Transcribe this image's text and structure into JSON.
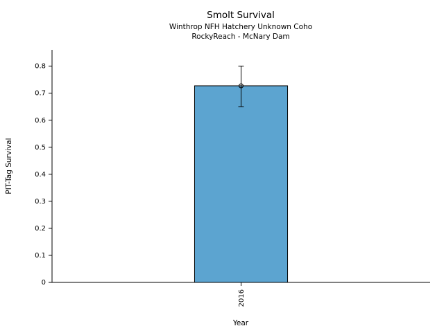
{
  "chart": {
    "title": "Smolt Survival",
    "subtitle_line1": "Winthrop NFH Hatchery Unknown Coho",
    "subtitle_line2": "RockyReach - McNary Dam",
    "xlabel": "Year",
    "ylabel": "PIT-Tag Survival"
  },
  "chart_data": {
    "type": "bar",
    "title": "Smolt Survival",
    "subtitle": [
      "Winthrop NFH Hatchery Unknown Coho",
      "RockyReach - McNary Dam"
    ],
    "categories": [
      "2016"
    ],
    "values": [
      0.727
    ],
    "error_low": [
      0.65
    ],
    "error_high": [
      0.8
    ],
    "xlabel": "Year",
    "ylabel": "PIT-Tag Survival",
    "ylim": [
      0,
      0.86
    ],
    "yticks": [
      0,
      0.1,
      0.2,
      0.3,
      0.4,
      0.5,
      0.6,
      0.7,
      0.8
    ],
    "ytick_labels": [
      "0",
      "0.1",
      "0.2",
      "0.3",
      "0.4",
      "0.5",
      "0.6",
      "0.7",
      "0.8"
    ],
    "grid": false,
    "legend": false,
    "bar_color": "#5ca4d0",
    "bar_edge_color": "#000000",
    "error_color": "#000000",
    "axis_color": "#000000"
  }
}
